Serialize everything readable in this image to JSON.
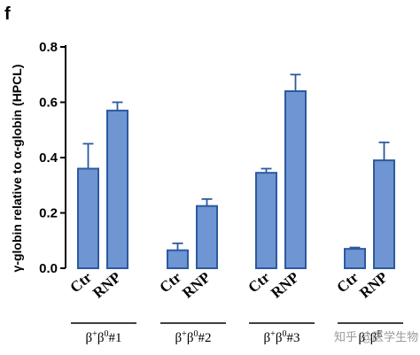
{
  "panel_letter": "f",
  "watermark": "知乎 @医学生物",
  "chart_data": {
    "type": "bar",
    "ylabel": "γ-globin relative to α-globin (HPCL)",
    "ylim": [
      0,
      0.8
    ],
    "yticks": [
      "0.0",
      "0.2",
      "0.4",
      "0.6",
      "0.8"
    ],
    "bar_color": "#6f95d2",
    "bar_edge_color": "#2c5aa0",
    "groups": [
      {
        "label_parts": [
          "β",
          "+",
          "β",
          "0",
          "#1"
        ],
        "categories": [
          "Ctr",
          "RNP"
        ],
        "values": [
          0.36,
          0.57
        ],
        "errors": [
          0.09,
          0.03
        ]
      },
      {
        "label_parts": [
          "β",
          "+",
          "β",
          "0",
          "#2"
        ],
        "categories": [
          "Ctr",
          "RNP"
        ],
        "values": [
          0.065,
          0.225
        ],
        "errors": [
          0.025,
          0.025
        ]
      },
      {
        "label_parts": [
          "β",
          "+",
          "β",
          "0",
          "#3"
        ],
        "categories": [
          "Ctr",
          "RNP"
        ],
        "values": [
          0.345,
          0.64
        ],
        "errors": [
          0.015,
          0.06
        ]
      },
      {
        "label_parts": [
          "β",
          "+",
          "β",
          "E",
          ""
        ],
        "categories": [
          "Ctr",
          "RNP"
        ],
        "values": [
          0.07,
          0.39
        ],
        "errors": [
          0.005,
          0.065
        ]
      }
    ]
  }
}
